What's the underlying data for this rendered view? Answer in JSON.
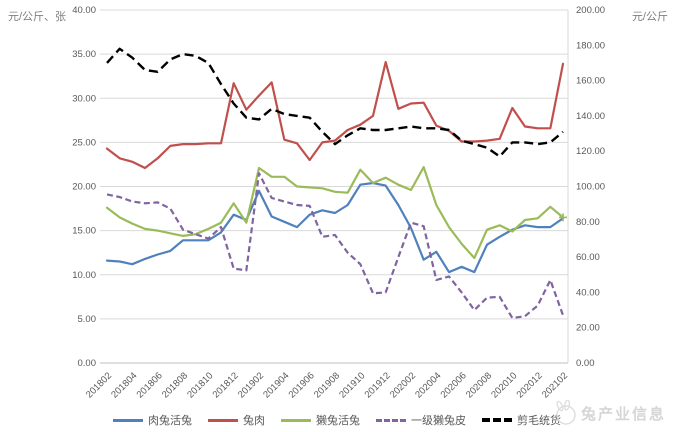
{
  "axis_titles": {
    "left": "元/公斤、张",
    "right": "元/公斤"
  },
  "watermark": {
    "text": "兔产业信息"
  },
  "chart_data": {
    "type": "line",
    "title": "",
    "left_axis": {
      "min": 0,
      "max": 40,
      "step": 5,
      "label_format": "0.00"
    },
    "right_axis": {
      "min": 0,
      "max": 200,
      "step": 20,
      "label_format": "0.00"
    },
    "x_tick_every": 2,
    "grid": true,
    "legend_position": "bottom",
    "categories": [
      "201802",
      "201803",
      "201804",
      "201805",
      "201806",
      "201807",
      "201808",
      "201809",
      "201810",
      "201811",
      "201812",
      "201901",
      "201902",
      "201903",
      "201904",
      "201905",
      "201906",
      "201907",
      "201908",
      "201909",
      "201910",
      "201911",
      "201912",
      "202001",
      "202002",
      "202003",
      "202004",
      "202005",
      "202006",
      "202007",
      "202008",
      "202009",
      "202010",
      "202011",
      "202012",
      "202101",
      "202102"
    ],
    "series": [
      {
        "name": "肉兔活兔",
        "axis": "left",
        "color": "#4F81BD",
        "dash": "solid",
        "values": [
          11.6,
          11.5,
          11.2,
          11.8,
          12.3,
          12.7,
          13.9,
          13.9,
          13.9,
          14.8,
          16.8,
          16.2,
          19.5,
          16.6,
          16.0,
          15.4,
          16.8,
          17.3,
          17.0,
          17.9,
          20.2,
          20.4,
          20.1,
          17.9,
          15.3,
          11.7,
          12.6,
          10.3,
          10.9,
          10.3,
          13.4,
          14.3,
          15.1,
          15.6,
          15.4,
          15.4,
          16.4
        ]
      },
      {
        "name": "兔肉",
        "axis": "left",
        "color": "#C0504D",
        "dash": "solid",
        "values": [
          24.3,
          23.2,
          22.8,
          22.1,
          23.2,
          24.6,
          24.8,
          24.8,
          24.9,
          24.9,
          31.7,
          28.7,
          30.3,
          31.8,
          25.3,
          24.9,
          23.0,
          25.0,
          25.2,
          26.4,
          27.0,
          28.0,
          34.1,
          28.8,
          29.4,
          29.5,
          26.9,
          26.3,
          25.1,
          25.1,
          25.2,
          25.4,
          28.9,
          26.8,
          26.6,
          26.6,
          33.9
        ]
      },
      {
        "name": "獭兔活兔",
        "axis": "left",
        "color": "#9BBB59",
        "dash": "solid",
        "end_marker": "plus",
        "values": [
          17.6,
          16.5,
          15.8,
          15.2,
          15.0,
          14.7,
          14.4,
          14.6,
          15.2,
          15.9,
          18.1,
          15.9,
          22.1,
          21.1,
          21.1,
          20.0,
          19.9,
          19.8,
          19.4,
          19.3,
          21.9,
          20.4,
          21.0,
          20.2,
          19.6,
          22.2,
          17.9,
          15.4,
          13.5,
          11.9,
          15.1,
          15.6,
          14.9,
          16.2,
          16.4,
          17.7,
          16.5
        ]
      },
      {
        "name": "一级獭兔皮",
        "axis": "left",
        "color": "#8064A2",
        "dash": "dashed",
        "values": [
          19.1,
          18.8,
          18.3,
          18.1,
          18.2,
          17.5,
          15.1,
          14.6,
          14.1,
          15.4,
          10.7,
          10.5,
          21.5,
          18.7,
          18.3,
          17.9,
          17.8,
          14.3,
          14.5,
          12.5,
          11.2,
          7.9,
          8.0,
          12.0,
          15.9,
          15.5,
          9.4,
          9.8,
          8.0,
          6.0,
          7.4,
          7.5,
          5.1,
          5.3,
          6.5,
          9.4,
          5.4
        ]
      },
      {
        "name": "剪毛统货",
        "axis": "right",
        "color": "#000000",
        "dash": "long-dash",
        "values": [
          170,
          178,
          173,
          166,
          165,
          172,
          175,
          174,
          170,
          158,
          147,
          139,
          138,
          144,
          141,
          140,
          139,
          131,
          124,
          129,
          133,
          132,
          132,
          133,
          134,
          133,
          133,
          132,
          126,
          124,
          122,
          117,
          125,
          125,
          124,
          125,
          131
        ]
      }
    ]
  }
}
